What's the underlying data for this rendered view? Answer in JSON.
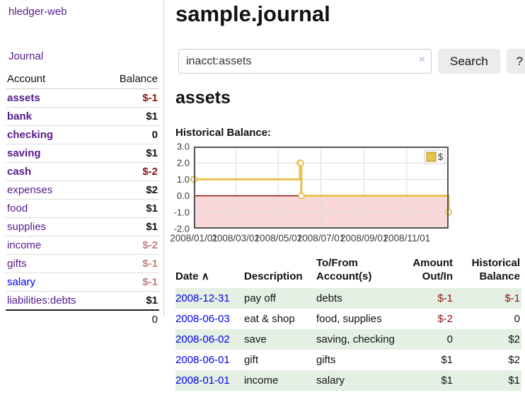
{
  "app": {
    "brand": "hledger-web",
    "nav_journal": "Journal"
  },
  "sidebar": {
    "columns": {
      "account": "Account",
      "balance": "Balance"
    },
    "accounts": [
      {
        "name": "assets",
        "indent": 1,
        "bold": true,
        "balance": "$-1",
        "balance_style": "neg-strong"
      },
      {
        "name": "bank",
        "indent": 2,
        "bold": true,
        "balance": "$1",
        "balance_style": "pos"
      },
      {
        "name": "checking",
        "indent": 3,
        "bold": true,
        "balance": "0",
        "balance_style": "pos"
      },
      {
        "name": "saving",
        "indent": 3,
        "bold": true,
        "balance": "$1",
        "balance_style": "pos"
      },
      {
        "name": "cash",
        "indent": 2,
        "bold": true,
        "balance": "$-2",
        "balance_style": "neg-strong"
      },
      {
        "name": "expenses",
        "indent": 1,
        "bold": false,
        "balance": "$2",
        "balance_style": "pos"
      },
      {
        "name": "food",
        "indent": 2,
        "bold": false,
        "balance": "$1",
        "balance_style": "pos"
      },
      {
        "name": "supplies",
        "indent": 2,
        "bold": false,
        "balance": "$1",
        "balance_style": "pos"
      },
      {
        "name": "income",
        "indent": 1,
        "bold": false,
        "balance": "$-2",
        "balance_style": "neg-faded"
      },
      {
        "name": "gifts",
        "indent": 2,
        "bold": false,
        "balance": "$-1",
        "balance_style": "neg-faded"
      },
      {
        "name": "salary",
        "indent": 2,
        "bold": false,
        "link_style": "unvisited",
        "balance": "$-1",
        "balance_style": "neg-faded"
      },
      {
        "name": "liabilities:debts",
        "indent": 1,
        "bold": false,
        "balance": "$1",
        "balance_style": "pos"
      }
    ],
    "total": "0"
  },
  "header": {
    "title": "sample.journal"
  },
  "search": {
    "value": "inacct:assets",
    "clear_icon": "×",
    "button_label": "Search",
    "help_label": "?"
  },
  "account_page": {
    "title": "assets",
    "chart_label": "Historical Balance:"
  },
  "chart_data": {
    "type": "line",
    "step": true,
    "title": "Historical Balance:",
    "series": [
      {
        "name": "$",
        "color": "#e7c24f",
        "points": [
          [
            "2008-01-01",
            1
          ],
          [
            "2008-06-01",
            2
          ],
          [
            "2008-06-02",
            2
          ],
          [
            "2008-06-03",
            0
          ],
          [
            "2008-12-31",
            -1
          ]
        ]
      }
    ],
    "x_range": [
      "2008-01-01",
      "2008-12-31"
    ],
    "x_tick_labels": [
      "2008/01/01",
      "2008/03/01",
      "2008/05/01",
      "2008/07/01",
      "2008/09/01",
      "2008/11/01"
    ],
    "y_ticks": [
      3,
      2,
      1,
      0,
      -1,
      -2
    ],
    "y_tick_labels": [
      "3.0",
      "2.0",
      "1.0",
      "0.0",
      "-1.0",
      "-2.0"
    ],
    "ylim": [
      -2,
      3
    ],
    "grid": true,
    "legend": {
      "label": "$",
      "position": "top-right"
    },
    "colors": {
      "negative_region": "#f8d8d8",
      "zero_line": "#8b0000",
      "gridline": "#ddd",
      "border": "#555",
      "axis_text": "#3a3a3a"
    }
  },
  "register": {
    "headers": {
      "date": "Date",
      "sort_icon": "∧",
      "description": "Description",
      "account": "To/From Account(s)",
      "amount": "Amount Out/In",
      "balance": "Historical Balance"
    },
    "rows": [
      {
        "date": "2008-12-31",
        "description": "pay off",
        "accounts": "debts",
        "amount": "$-1",
        "amount_neg": true,
        "balance": "$-1",
        "balance_neg": true
      },
      {
        "date": "2008-06-03",
        "description": "eat & shop",
        "accounts": "food, supplies",
        "amount": "$-2",
        "amount_neg": true,
        "balance": "0",
        "balance_neg": false
      },
      {
        "date": "2008-06-02",
        "description": "save",
        "accounts": "saving, checking",
        "amount": "0",
        "amount_neg": false,
        "balance": "$2",
        "balance_neg": false
      },
      {
        "date": "2008-06-01",
        "description": "gift",
        "accounts": "gifts",
        "amount": "$1",
        "amount_neg": false,
        "balance": "$2",
        "balance_neg": false
      },
      {
        "date": "2008-01-01",
        "description": "income",
        "accounts": "salary",
        "amount": "$1",
        "amount_neg": false,
        "balance": "$1",
        "balance_neg": false
      }
    ]
  },
  "colors": {
    "link_purple": "#551a8b",
    "link_blue": "#0000ee",
    "negative_strong": "#8b1111",
    "negative_faded": "#c28080",
    "row_green": "#e3f0e3",
    "series_gold": "#e7c24f"
  }
}
